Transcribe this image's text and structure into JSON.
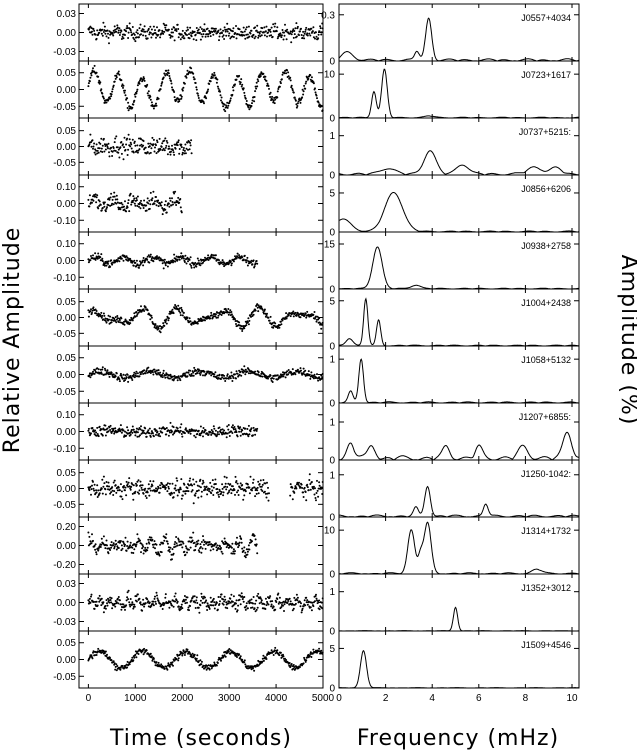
{
  "figure": {
    "xlabel_left": "Time (seconds)",
    "xlabel_right": "Frequency (mHz)",
    "ylabel_left": "Relative Amplitude",
    "ylabel_right": "Amplitude (%)"
  },
  "chart_data": [
    {
      "type": "scatter",
      "panel": "light-curves",
      "x_range": [
        -200,
        5000
      ],
      "x_ticks": [
        0,
        1000,
        2000,
        3000,
        4000,
        5000
      ],
      "x_tick_labels": [
        "0",
        "1000",
        "2000",
        "3000",
        "4000",
        "5000"
      ],
      "rows": [
        {
          "star": "J0557+4034",
          "ylim": [
            -0.045,
            0.045
          ],
          "y_ticks": [
            0.03,
            0.0,
            -0.03
          ],
          "y_tick_labels": [
            "0.03",
            "0.00",
            "-0.03"
          ],
          "t_end": 5000,
          "noise": 0.011,
          "periods": [
            260
          ],
          "amplitudes": [
            0.003
          ]
        },
        {
          "star": "J0723+1617",
          "ylim": [
            -0.085,
            0.085
          ],
          "y_ticks": [
            0.05,
            0.0,
            -0.05
          ],
          "y_tick_labels": [
            "0.05",
            "0.00",
            "-0.05"
          ],
          "t_end": 5000,
          "noise": 0.012,
          "periods": [
            510,
            1980
          ],
          "amplitudes": [
            0.045,
            0.012
          ]
        },
        {
          "star": "J0737+5215:",
          "ylim": [
            -0.09,
            0.09
          ],
          "y_ticks": [
            0.05,
            0.0,
            -0.05
          ],
          "y_tick_labels": [
            "0.05",
            "0.00",
            "-0.05"
          ],
          "t_end": 2200,
          "noise": 0.028,
          "periods": [
            260
          ],
          "amplitudes": [
            0.008
          ]
        },
        {
          "star": "J0856+6206",
          "ylim": [
            -0.17,
            0.17
          ],
          "y_ticks": [
            0.1,
            0.0,
            -0.1
          ],
          "y_tick_labels": [
            "0.10",
            "0.00",
            "-0.10"
          ],
          "t_end": 2000,
          "noise": 0.05,
          "periods": [
            430
          ],
          "amplitudes": [
            0.03
          ]
        },
        {
          "star": "J0938+2758",
          "ylim": [
            -0.17,
            0.17
          ],
          "y_ticks": [
            0.1,
            0.0,
            -0.1
          ],
          "y_tick_labels": [
            "0.10",
            "0.00",
            "-0.10"
          ],
          "t_end": 3600,
          "noise": 0.025,
          "periods": [
            610
          ],
          "amplitudes": [
            0.02
          ]
        },
        {
          "star": "J1004+2438",
          "ylim": [
            -0.09,
            0.09
          ],
          "y_ticks": [
            0.05,
            0.0,
            -0.05
          ],
          "y_tick_labels": [
            "0.05",
            "0.00",
            "-0.05"
          ],
          "t_end": 5000,
          "noise": 0.012,
          "periods": [
            860,
            600
          ],
          "amplitudes": [
            0.022,
            0.014
          ]
        },
        {
          "star": "J1058+5132",
          "ylim": [
            -0.085,
            0.085
          ],
          "y_ticks": [
            0.05,
            0.0,
            -0.05
          ],
          "y_tick_labels": [
            "0.05",
            "0.00",
            "-0.05"
          ],
          "t_end": 5000,
          "noise": 0.012,
          "periods": [
            1050
          ],
          "amplitudes": [
            0.01
          ]
        },
        {
          "star": "J1207+6855:",
          "ylim": [
            -0.17,
            0.17
          ],
          "y_ticks": [
            0.1,
            0.0,
            -0.1
          ],
          "y_tick_labels": [
            "0.10",
            "0.00",
            "-0.10"
          ],
          "t_end": 3600,
          "noise": 0.035,
          "periods": [
            1400
          ],
          "amplitudes": [
            0.006
          ]
        },
        {
          "star": "J1250-1042:",
          "ylim": [
            -0.09,
            0.09
          ],
          "y_ticks": [
            0.05,
            0.0,
            -0.05
          ],
          "y_tick_labels": [
            "0.05",
            "0.00",
            "-0.05"
          ],
          "t_end": 5000,
          "gap": [
            3850,
            4300
          ],
          "noise": 0.028,
          "periods": [
            260
          ],
          "amplitudes": [
            0.007
          ]
        },
        {
          "star": "J1314+1732",
          "ylim": [
            -0.3,
            0.3
          ],
          "y_ticks": [
            0.2,
            0.0,
            -0.2
          ],
          "y_tick_labels": [
            "0.20",
            "0.00",
            "-0.20"
          ],
          "t_end": 3600,
          "noise": 0.07,
          "periods": [
            310,
            270
          ],
          "amplitudes": [
            0.04,
            0.035
          ]
        },
        {
          "star": "J1352+3012",
          "ylim": [
            -0.045,
            0.045
          ],
          "y_ticks": [
            0.03,
            0.0,
            -0.03
          ],
          "y_tick_labels": [
            "0.03",
            "0.00",
            "-0.03"
          ],
          "t_end": 5000,
          "noise": 0.011,
          "periods": [
            200
          ],
          "amplitudes": [
            0.006
          ]
        },
        {
          "star": "J1509+4546",
          "ylim": [
            -0.085,
            0.085
          ],
          "y_ticks": [
            0.05,
            0.0,
            -0.05
          ],
          "y_tick_labels": [
            "0.05",
            "0.00",
            "-0.05"
          ],
          "t_end": 5000,
          "noise": 0.01,
          "periods": [
            930
          ],
          "amplitudes": [
            0.025
          ]
        }
      ]
    },
    {
      "type": "line",
      "panel": "amplitude-spectra",
      "x_range": [
        0,
        10.3
      ],
      "x_ticks": [
        0,
        2,
        4,
        6,
        8,
        10
      ],
      "x_tick_labels": [
        "0",
        "2",
        "4",
        "6",
        "8",
        "10"
      ],
      "rows": [
        {
          "star": "J0557+4034",
          "ylim": [
            0,
            0.37
          ],
          "y_ticks": [
            0.0,
            0.3
          ],
          "y_tick_labels": [
            "0",
            "0.3"
          ],
          "peaks": [
            [
              3.85,
              0.27,
              0.13
            ],
            [
              3.35,
              0.06,
              0.1
            ],
            [
              0.35,
              0.05,
              0.25
            ]
          ],
          "noise": 0.015
        },
        {
          "star": "J0723+1617",
          "ylim": [
            0,
            13
          ],
          "y_ticks": [
            0,
            10
          ],
          "y_tick_labels": [
            "0",
            "10"
          ],
          "peaks": [
            [
              1.95,
              11.0,
              0.12
            ],
            [
              1.5,
              6.0,
              0.1
            ],
            [
              3.9,
              0.4,
              0.2
            ]
          ],
          "noise": 0.2
        },
        {
          "star": "J0737+5215:",
          "ylim": [
            0,
            1.45
          ],
          "y_ticks": [
            0,
            1
          ],
          "y_tick_labels": [
            "0",
            "1"
          ],
          "peaks": [
            [
              3.9,
              0.6,
              0.25
            ],
            [
              5.3,
              0.25,
              0.25
            ],
            [
              2.1,
              0.15,
              0.3
            ],
            [
              8.4,
              0.18,
              0.3
            ],
            [
              9.3,
              0.15,
              0.25
            ]
          ],
          "noise": 0.06
        },
        {
          "star": "J0856+6206",
          "ylim": [
            0,
            7.3
          ],
          "y_ticks": [
            0,
            5
          ],
          "y_tick_labels": [
            "0",
            "5"
          ],
          "peaks": [
            [
              2.35,
              5.0,
              0.38
            ],
            [
              0.15,
              1.6,
              0.35
            ]
          ],
          "noise": 0.15
        },
        {
          "star": "J0938+2758",
          "ylim": [
            0,
            19
          ],
          "y_ticks": [
            0,
            15
          ],
          "y_tick_labels": [
            "0",
            "15"
          ],
          "peaks": [
            [
              1.65,
              14.0,
              0.2
            ],
            [
              3.3,
              1.2,
              0.2
            ]
          ],
          "noise": 0.3
        },
        {
          "star": "J1004+2438",
          "ylim": [
            0,
            6.3
          ],
          "y_ticks": [
            0,
            5
          ],
          "y_tick_labels": [
            "0",
            "5"
          ],
          "peaks": [
            [
              1.15,
              5.2,
              0.09
            ],
            [
              1.7,
              2.8,
              0.09
            ],
            [
              0.45,
              0.8,
              0.15
            ]
          ],
          "noise": 0.12
        },
        {
          "star": "J1058+5132",
          "ylim": [
            0,
            1.3
          ],
          "y_ticks": [
            0,
            1
          ],
          "y_tick_labels": [
            "0",
            "1"
          ],
          "peaks": [
            [
              0.95,
              1.0,
              0.1
            ],
            [
              0.5,
              0.25,
              0.1
            ]
          ],
          "noise": 0.03
        },
        {
          "star": "J1207+6855:",
          "ylim": [
            0,
            1.5
          ],
          "y_ticks": [
            0,
            1
          ],
          "y_tick_labels": [
            "0",
            "1"
          ],
          "peaks": [
            [
              9.8,
              0.7,
              0.18
            ],
            [
              0.5,
              0.4,
              0.15
            ],
            [
              1.4,
              0.35,
              0.15
            ],
            [
              4.6,
              0.3,
              0.15
            ],
            [
              6.0,
              0.3,
              0.15
            ],
            [
              7.9,
              0.3,
              0.2
            ]
          ],
          "noise": 0.12
        },
        {
          "star": "J1250-1042:",
          "ylim": [
            0,
            1.35
          ],
          "y_ticks": [
            0,
            1
          ],
          "y_tick_labels": [
            "0",
            "1"
          ],
          "peaks": [
            [
              3.8,
              0.72,
              0.12
            ],
            [
              6.3,
              0.3,
              0.1
            ],
            [
              3.3,
              0.2,
              0.1
            ]
          ],
          "noise": 0.05
        },
        {
          "star": "J1314+1732",
          "ylim": [
            0,
            13
          ],
          "y_ticks": [
            0,
            10
          ],
          "y_tick_labels": [
            "0",
            "10"
          ],
          "peaks": [
            [
              3.8,
              11.5,
              0.15
            ],
            [
              3.1,
              10.0,
              0.15
            ],
            [
              3.5,
              4.0,
              0.1
            ],
            [
              8.5,
              1.0,
              0.2
            ]
          ],
          "noise": 0.3
        },
        {
          "star": "J1352+3012",
          "ylim": [
            0,
            1.45
          ],
          "y_ticks": [
            0,
            1
          ],
          "y_tick_labels": [
            "0",
            "1"
          ],
          "peaks": [
            [
              5.0,
              0.6,
              0.09
            ]
          ],
          "noise": 0.01
        },
        {
          "star": "J1509+4546",
          "ylim": [
            0,
            7.2
          ],
          "y_ticks": [
            0,
            5
          ],
          "y_tick_labels": [
            "0",
            "5"
          ],
          "peaks": [
            [
              1.05,
              4.7,
              0.13
            ]
          ],
          "noise": 0.05
        }
      ]
    }
  ]
}
